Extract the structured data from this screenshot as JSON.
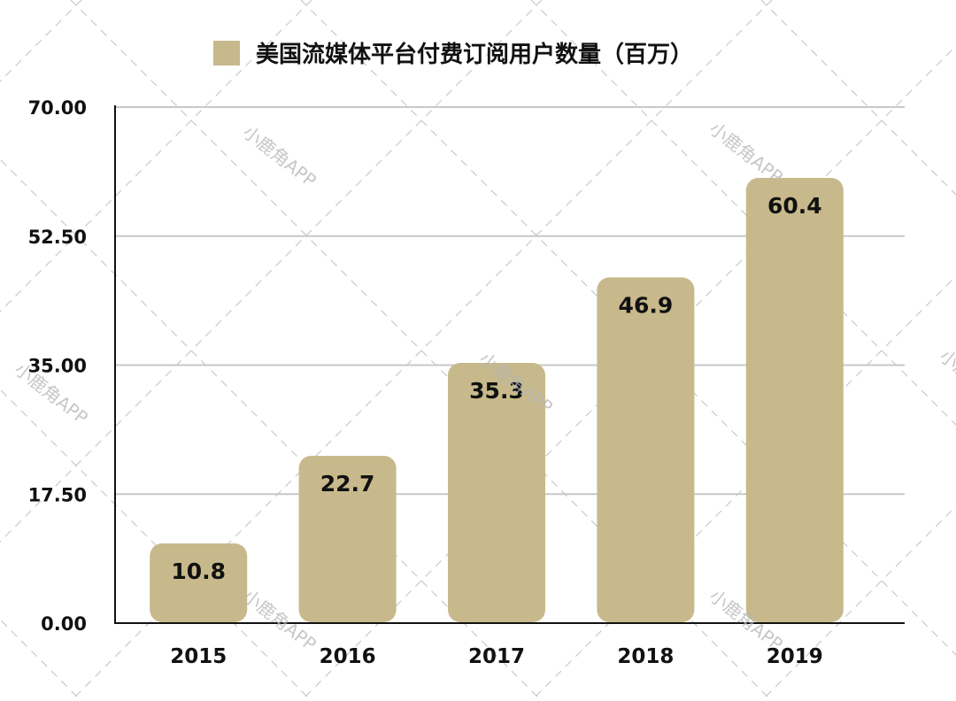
{
  "chart_data": {
    "type": "bar",
    "title": "",
    "xlabel": "",
    "ylabel": "",
    "categories": [
      "2015",
      "2016",
      "2017",
      "2018",
      "2019"
    ],
    "series": [
      {
        "name": "美国流媒体平台付费订阅用户数量（百万）",
        "values": [
          10.8,
          22.7,
          35.3,
          46.9,
          60.4
        ]
      }
    ],
    "value_labels": [
      "10.8",
      "22.7",
      "35.3",
      "46.9",
      "60.4"
    ],
    "ylim": [
      0,
      70
    ],
    "yticks": [
      0,
      17.5,
      35,
      52.5,
      70
    ],
    "ytick_labels": [
      "0.00",
      "17.50",
      "35.00",
      "52.50",
      "70.00"
    ],
    "grid": true,
    "legend_position": "top",
    "bar_color": "#c7b98b"
  },
  "watermark": {
    "text": "小鹿角APP"
  }
}
